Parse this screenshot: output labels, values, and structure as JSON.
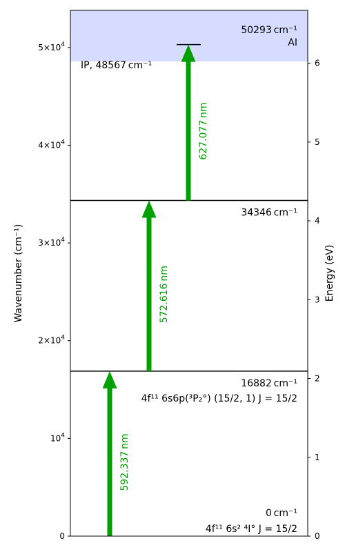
{
  "axes": {
    "left_title": "Wavenumber (cm⁻¹)",
    "right_title": "Energy (eV)",
    "left_ticks": [
      {
        "value": 0,
        "mantissa": "0",
        "exp": ""
      },
      {
        "value": 10000,
        "mantissa": "10",
        "exp": "4"
      },
      {
        "value": 20000,
        "mantissa": "2×10",
        "exp": "4"
      },
      {
        "value": 30000,
        "mantissa": "3×10",
        "exp": "4"
      },
      {
        "value": 40000,
        "mantissa": "4×10",
        "exp": "4"
      },
      {
        "value": 50000,
        "mantissa": "5×10",
        "exp": "4"
      }
    ],
    "right_ticks": [
      "0",
      "1",
      "2",
      "3",
      "4",
      "5",
      "6"
    ],
    "ymax_wavenumber": 53800
  },
  "colors": {
    "arrow": "#00a000",
    "ionization_band": "#d5dcff",
    "level_line": "#000000"
  },
  "ionization": {
    "label": "IP, 48567 cm⁻¹",
    "wavenumber": 48567
  },
  "levels": [
    {
      "wavenumber": 0,
      "energy_label": "0 cm⁻¹",
      "config_label": "4f¹¹ 6s² ⁴I° J = 15/2"
    },
    {
      "wavenumber": 16882,
      "energy_label": "16882 cm⁻¹",
      "config_label": "4f¹¹ 6s6p(³P₂°) (15/2, 1) J = 15/2"
    },
    {
      "wavenumber": 34346,
      "energy_label": "34346 cm⁻¹",
      "config_label": ""
    },
    {
      "wavenumber": 50293,
      "energy_label": "50293 cm⁻¹",
      "config_label": "AI"
    }
  ],
  "transitions": [
    {
      "from": 0,
      "to": 16882,
      "wavelength_label": "592.337 nm"
    },
    {
      "from": 16882,
      "to": 34346,
      "wavelength_label": "572.616 nm"
    },
    {
      "from": 34346,
      "to": 50293,
      "wavelength_label": "627.077 nm"
    }
  ]
}
